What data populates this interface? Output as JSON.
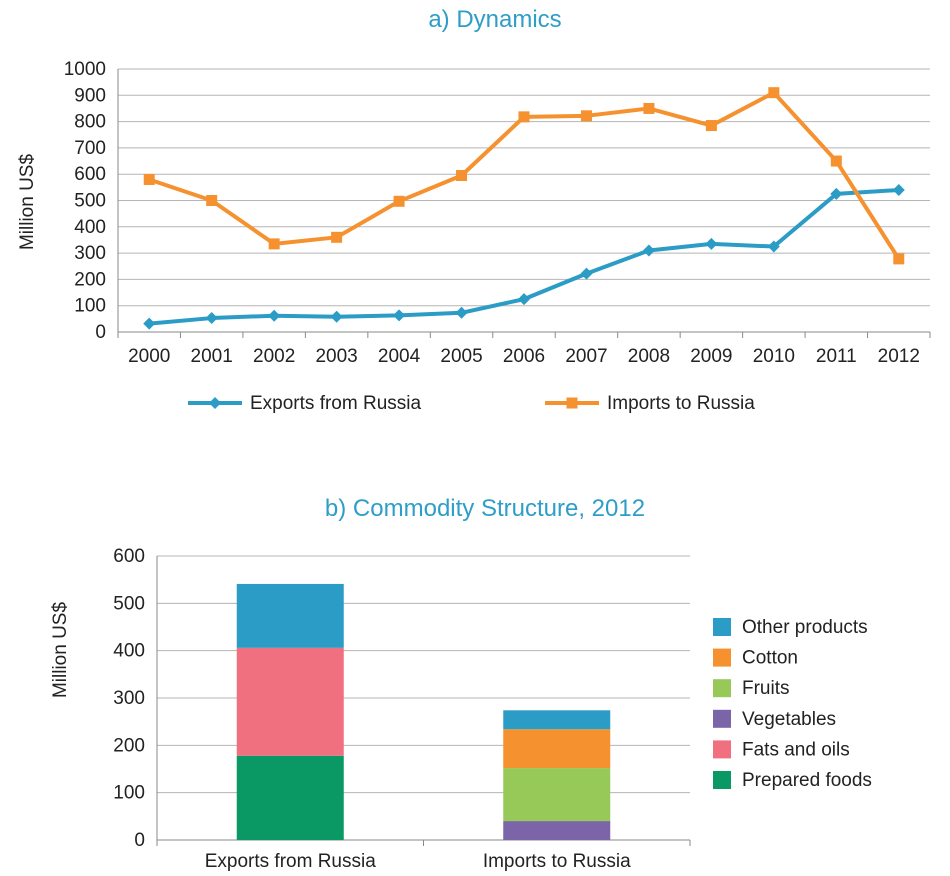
{
  "chart_data": [
    {
      "type": "line",
      "title": "a) Dynamics",
      "ylabel": "Million US$",
      "ylim": [
        0,
        1000
      ],
      "yticks": [
        0,
        100,
        200,
        300,
        400,
        500,
        600,
        700,
        800,
        900,
        1000
      ],
      "categories": [
        "2000",
        "2001",
        "2002",
        "2003",
        "2004",
        "2005",
        "2006",
        "2007",
        "2008",
        "2009",
        "2010",
        "2011",
        "2012"
      ],
      "grid": true,
      "legend_position": "bottom",
      "series": [
        {
          "name": "Exports from Russia",
          "color": "#2b9cc6",
          "marker": "diamond",
          "values": [
            32,
            53,
            62,
            58,
            63,
            73,
            125,
            222,
            310,
            335,
            325,
            525,
            540
          ]
        },
        {
          "name": "Imports to Russia",
          "color": "#f5922f",
          "marker": "square",
          "values": [
            580,
            500,
            335,
            360,
            497,
            595,
            818,
            822,
            850,
            785,
            910,
            650,
            278
          ]
        }
      ]
    },
    {
      "type": "bar",
      "stacked": true,
      "title": "b) Commodity Structure, 2012",
      "ylabel": "Million US$",
      "ylim": [
        0,
        600
      ],
      "yticks": [
        0,
        100,
        200,
        300,
        400,
        500,
        600
      ],
      "categories": [
        "Exports from Russia",
        "Imports to Russia"
      ],
      "grid": true,
      "legend_position": "right",
      "series": [
        {
          "name": "Prepared foods",
          "color": "#0a9964",
          "values": [
            178,
            0
          ]
        },
        {
          "name": "Fats and oils",
          "color": "#f07080",
          "values": [
            228,
            0
          ]
        },
        {
          "name": "Vegetables",
          "color": "#7b64a8",
          "values": [
            0,
            40
          ]
        },
        {
          "name": "Fruits",
          "color": "#96c958",
          "values": [
            0,
            112
          ]
        },
        {
          "name": "Cotton",
          "color": "#f5922f",
          "values": [
            0,
            82
          ]
        },
        {
          "name": "Other products",
          "color": "#2b9cc6",
          "values": [
            135,
            40
          ]
        }
      ],
      "legend_order": [
        "Other products",
        "Cotton",
        "Fruits",
        "Vegetables",
        "Fats and oils",
        "Prepared foods"
      ]
    }
  ]
}
